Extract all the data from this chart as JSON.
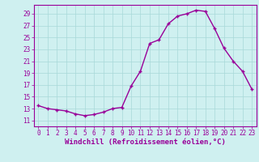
{
  "hours": [
    0,
    1,
    2,
    3,
    4,
    5,
    6,
    7,
    8,
    9,
    10,
    11,
    12,
    13,
    14,
    15,
    16,
    17,
    18,
    19,
    20,
    21,
    22,
    23
  ],
  "values": [
    13.5,
    13.0,
    12.8,
    12.6,
    12.1,
    11.8,
    12.0,
    12.4,
    13.0,
    13.2,
    16.8,
    19.3,
    24.0,
    24.6,
    27.3,
    28.6,
    29.0,
    29.6,
    29.4,
    26.5,
    23.2,
    21.0,
    19.3,
    16.3
  ],
  "line_color": "#990099",
  "marker": "+",
  "marker_size": 3,
  "marker_linewidth": 1.0,
  "bg_color": "#cff0f0",
  "grid_color": "#a8d8d8",
  "axis_color": "#990099",
  "xlabel": "Windchill (Refroidissement éolien,°C)",
  "xlabel_fontsize": 6.5,
  "tick_fontsize": 5.5,
  "xlim": [
    -0.5,
    23.5
  ],
  "ylim": [
    10.0,
    30.5
  ],
  "yticks": [
    11,
    13,
    15,
    17,
    19,
    21,
    23,
    25,
    27,
    29
  ],
  "xticks": [
    0,
    1,
    2,
    3,
    4,
    5,
    6,
    7,
    8,
    9,
    10,
    11,
    12,
    13,
    14,
    15,
    16,
    17,
    18,
    19,
    20,
    21,
    22,
    23
  ],
  "linewidth": 1.0
}
